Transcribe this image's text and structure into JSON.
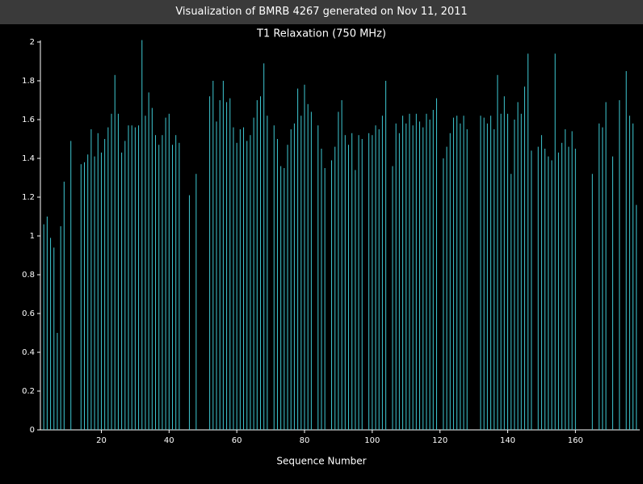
{
  "page_title": "Visualization of BMRB 4267 generated on Nov 11, 2011",
  "chart_data": {
    "type": "bar",
    "title": "T1 Relaxation (750 MHz)",
    "x_label": "Sequence Number",
    "color": "#3ec8d2",
    "x": [
      3,
      4,
      5,
      6,
      7,
      8,
      9,
      11,
      14,
      15,
      16,
      17,
      18,
      19,
      20,
      21,
      22,
      23,
      24,
      25,
      26,
      27,
      28,
      29,
      30,
      31,
      32,
      33,
      34,
      35,
      36,
      37,
      38,
      39,
      40,
      41,
      42,
      43,
      46,
      48,
      52,
      53,
      54,
      55,
      56,
      57,
      58,
      59,
      60,
      61,
      62,
      63,
      64,
      65,
      66,
      67,
      68,
      69,
      71,
      72,
      73,
      74,
      75,
      76,
      77,
      78,
      79,
      80,
      81,
      82,
      84,
      85,
      86,
      88,
      89,
      90,
      91,
      92,
      93,
      94,
      95,
      96,
      97,
      99,
      100,
      101,
      102,
      103,
      104,
      106,
      107,
      108,
      109,
      110,
      111,
      112,
      113,
      114,
      115,
      116,
      117,
      118,
      119,
      121,
      122,
      123,
      124,
      125,
      126,
      127,
      128,
      132,
      133,
      134,
      135,
      136,
      137,
      138,
      139,
      140,
      141,
      142,
      143,
      144,
      145,
      146,
      147,
      149,
      150,
      151,
      152,
      153,
      154,
      155,
      156,
      157,
      158,
      159,
      160,
      165,
      167,
      168,
      169,
      171,
      173,
      175,
      176,
      177,
      178
    ],
    "values": [
      1.06,
      1.1,
      0.99,
      0.94,
      0.5,
      1.05,
      1.28,
      1.49,
      1.37,
      1.38,
      1.42,
      1.55,
      1.41,
      1.53,
      1.43,
      1.5,
      1.56,
      1.63,
      1.83,
      1.63,
      1.43,
      1.49,
      1.57,
      1.57,
      1.56,
      1.57,
      2.01,
      1.62,
      1.74,
      1.66,
      1.52,
      1.47,
      1.52,
      1.61,
      1.63,
      1.47,
      1.52,
      1.48,
      1.21,
      1.32,
      1.72,
      1.8,
      1.59,
      1.7,
      1.8,
      1.69,
      1.71,
      1.56,
      1.48,
      1.55,
      1.56,
      1.49,
      1.52,
      1.61,
      1.7,
      1.72,
      1.89,
      1.62,
      1.57,
      1.5,
      1.36,
      1.35,
      1.47,
      1.55,
      1.58,
      1.76,
      1.62,
      1.78,
      1.68,
      1.64,
      1.57,
      1.45,
      1.35,
      1.39,
      1.46,
      1.64,
      1.7,
      1.52,
      1.47,
      1.53,
      1.34,
      1.52,
      1.5,
      1.53,
      1.52,
      1.57,
      1.55,
      1.62,
      1.8,
      1.36,
      1.58,
      1.53,
      1.62,
      1.58,
      1.63,
      1.57,
      1.63,
      1.59,
      1.56,
      1.63,
      1.6,
      1.65,
      1.71,
      1.4,
      1.46,
      1.53,
      1.61,
      1.62,
      1.58,
      1.62,
      1.55,
      1.62,
      1.61,
      1.58,
      1.62,
      1.55,
      1.83,
      1.63,
      1.72,
      1.63,
      1.32,
      1.6,
      1.69,
      1.63,
      1.77,
      1.94,
      1.44,
      1.46,
      1.52,
      1.45,
      1.41,
      1.39,
      1.94,
      1.43,
      1.48,
      1.55,
      1.46,
      1.54,
      1.45,
      1.32,
      1.58,
      1.56,
      1.69,
      1.41,
      1.7,
      1.85,
      1.62,
      1.58,
      1.16
    ],
    "xlim": [
      2,
      179
    ],
    "xticks": [
      20,
      40,
      60,
      80,
      100,
      120,
      140,
      160
    ],
    "ylim": [
      0,
      2
    ],
    "yticks": [
      0,
      0.2,
      0.4,
      0.6,
      0.8,
      1,
      1.2,
      1.4,
      1.6,
      1.8,
      2
    ]
  }
}
